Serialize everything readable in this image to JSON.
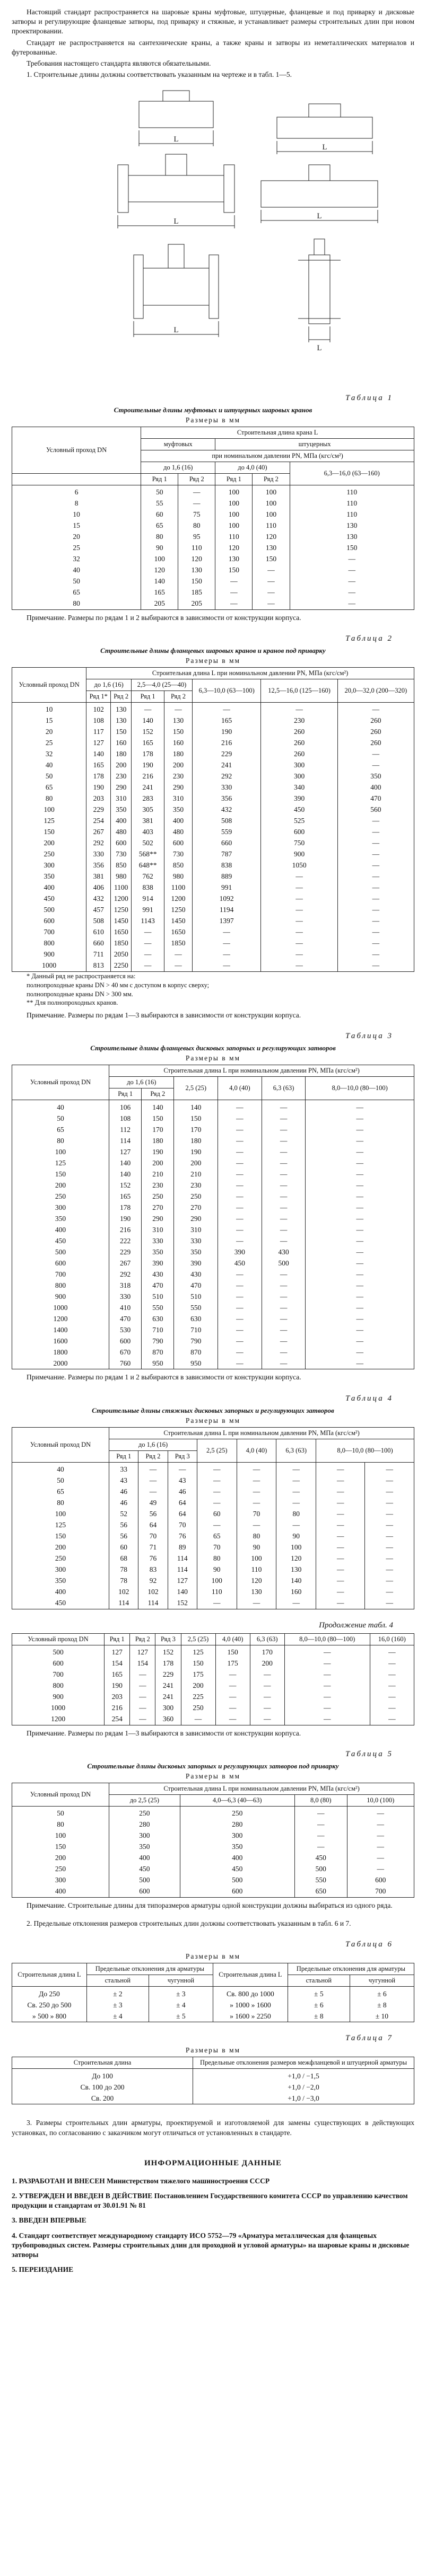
{
  "intro": {
    "p1": "Настоящий стандарт распространяется на шаровые краны муфтовые, штуцерные, фланцевые и под приварку и дисковые затворы и регулирующие фланцевые затворы, под приварку и стяжные, и устанавливает размеры строительных длин при новом проектировании.",
    "p2": "Стандарт не распространяется на сантехнические краны, а также краны и затворы из неметаллических материалов и футерованные.",
    "p3": "Требования настоящего стандарта являются обязательными.",
    "p4": "1. Строительные длины должны соответствовать указанным на чертеже и в табл. 1—5."
  },
  "figure": {
    "labels": [
      "L",
      "L",
      "L",
      "L",
      "L",
      "L"
    ]
  },
  "table1": {
    "caption": "Таблица 1",
    "title": "Строительные длины муфтовых и штуцерных шаровых кранов",
    "units": "Размеры в мм",
    "head": [
      "Условный проход DN",
      "Строительная длина крана L",
      "муфтовых",
      "штуцерных",
      "при номинальном давлении PN, МПа (кгс/см²)",
      "до 1,6 (16)",
      "до 4,0 (40)",
      "6,3—16,0 (63—160)",
      "Ряд 1",
      "Ряд 2",
      "Ряд 1",
      "Ряд 2"
    ],
    "rows": [
      [
        "6",
        "50",
        "—",
        "100",
        "100",
        "110"
      ],
      [
        "8",
        "55",
        "—",
        "100",
        "100",
        "110"
      ],
      [
        "10",
        "60",
        "75",
        "100",
        "100",
        "110"
      ],
      [
        "15",
        "65",
        "80",
        "100",
        "110",
        "130"
      ],
      [
        "20",
        "80",
        "95",
        "110",
        "120",
        "130"
      ],
      [
        "25",
        "90",
        "110",
        "120",
        "130",
        "150"
      ],
      [
        "32",
        "100",
        "120",
        "130",
        "150",
        "—"
      ],
      [
        "40",
        "120",
        "130",
        "150",
        "—",
        "—"
      ],
      [
        "50",
        "140",
        "150",
        "—",
        "—",
        "—"
      ],
      [
        "65",
        "165",
        "185",
        "—",
        "—",
        "—"
      ],
      [
        "80",
        "205",
        "205",
        "—",
        "—",
        "—"
      ]
    ],
    "note": "Примечание. Размеры по рядам 1 и 2 выбираются в зависимости от конструкции корпуса."
  },
  "table2": {
    "caption": "Таблица 2",
    "title": "Строительные длины фланцевых шаровых кранов и кранов под приварку",
    "units": "Размеры в мм",
    "head": [
      "Условный проход DN",
      "Строительная длина L при номинальном давлении PN, МПа (кгс/см²)",
      "до 1,6 (16)",
      "2,5—4,0 (25—40)",
      "6,3—10,0 (63—100)",
      "12,5—16,0 (125—160)",
      "20,0—32,0 (200—320)",
      "Ряд 1*",
      "Ряд 2",
      "Ряд 1",
      "Ряд 2"
    ],
    "rows": [
      [
        "10",
        "102",
        "130",
        "—",
        "—",
        "—",
        "—",
        "—"
      ],
      [
        "15",
        "108",
        "130",
        "140",
        "130",
        "165",
        "230",
        "260"
      ],
      [
        "20",
        "117",
        "150",
        "152",
        "150",
        "190",
        "260",
        "260"
      ],
      [
        "25",
        "127",
        "160",
        "165",
        "160",
        "216",
        "260",
        "260"
      ],
      [
        "32",
        "140",
        "180",
        "178",
        "180",
        "229",
        "260",
        "—"
      ],
      [
        "40",
        "165",
        "200",
        "190",
        "200",
        "241",
        "300",
        "—"
      ],
      [
        "50",
        "178",
        "230",
        "216",
        "230",
        "292",
        "300",
        "350"
      ],
      [
        "65",
        "190",
        "290",
        "241",
        "290",
        "330",
        "340",
        "400"
      ],
      [
        "80",
        "203",
        "310",
        "283",
        "310",
        "356",
        "390",
        "470"
      ],
      [
        "100",
        "229",
        "350",
        "305",
        "350",
        "432",
        "450",
        "560"
      ],
      [
        "125",
        "254",
        "400",
        "381",
        "400",
        "508",
        "525",
        "—"
      ],
      [
        "150",
        "267",
        "480",
        "403",
        "480",
        "559",
        "600",
        "—"
      ],
      [
        "200",
        "292",
        "600",
        "502",
        "600",
        "660",
        "750",
        "—"
      ],
      [
        "250",
        "330",
        "730",
        "568**",
        "730",
        "787",
        "900",
        "—"
      ],
      [
        "300",
        "356",
        "850",
        "648**",
        "850",
        "838",
        "1050",
        "—"
      ],
      [
        "350",
        "381",
        "980",
        "762",
        "980",
        "889",
        "—",
        "—"
      ],
      [
        "400",
        "406",
        "1100",
        "838",
        "1100",
        "991",
        "—",
        "—"
      ],
      [
        "450",
        "432",
        "1200",
        "914",
        "1200",
        "1092",
        "—",
        "—"
      ],
      [
        "500",
        "457",
        "1250",
        "991",
        "1250",
        "1194",
        "—",
        "—"
      ],
      [
        "600",
        "508",
        "1450",
        "1143",
        "1450",
        "1397",
        "—",
        "—"
      ],
      [
        "700",
        "610",
        "1650",
        "—",
        "1650",
        "—",
        "—",
        "—"
      ],
      [
        "800",
        "660",
        "1850",
        "—",
        "1850",
        "—",
        "—",
        "—"
      ],
      [
        "900",
        "711",
        "2050",
        "—",
        "—",
        "—",
        "—",
        "—"
      ],
      [
        "1000",
        "813",
        "2250",
        "—",
        "—",
        "—",
        "—",
        "—"
      ]
    ],
    "footnotes": [
      "* Данный ряд не распространяется на:",
      "полнопроходные краны DN > 40 мм с доступом в корпус сверху;",
      "полнопроходные краны DN > 300 мм.",
      "** Для полнопроходных кранов."
    ],
    "note": "Примечание. Размеры по рядам 1—3 выбираются в зависимости от конструкции корпуса."
  },
  "table3": {
    "caption": "Таблица 3",
    "title": "Строительные длины фланцевых дисковых запорных и регулирующих затворов",
    "units": "Размеры в мм",
    "head": [
      "Условный проход DN",
      "Строительная длина L при номинальном давлении PN, МПа (кгс/см²)",
      "до 1,6 (16)",
      "2,5 (25)",
      "4,0 (40)",
      "6,3 (63)",
      "8,0—10,0 (80—100)",
      "Ряд 1",
      "Ряд 2"
    ],
    "rows": [
      [
        "40",
        "106",
        "140",
        "140",
        "—",
        "—",
        "—"
      ],
      [
        "50",
        "108",
        "150",
        "150",
        "—",
        "—",
        "—"
      ],
      [
        "65",
        "112",
        "170",
        "170",
        "—",
        "—",
        "—"
      ],
      [
        "80",
        "114",
        "180",
        "180",
        "—",
        "—",
        "—"
      ],
      [
        "100",
        "127",
        "190",
        "190",
        "—",
        "—",
        "—"
      ],
      [
        "125",
        "140",
        "200",
        "200",
        "—",
        "—",
        "—"
      ],
      [
        "150",
        "140",
        "210",
        "210",
        "—",
        "—",
        "—"
      ],
      [
        "200",
        "152",
        "230",
        "230",
        "—",
        "—",
        "—"
      ],
      [
        "250",
        "165",
        "250",
        "250",
        "—",
        "—",
        "—"
      ],
      [
        "300",
        "178",
        "270",
        "270",
        "—",
        "—",
        "—"
      ],
      [
        "350",
        "190",
        "290",
        "290",
        "—",
        "—",
        "—"
      ],
      [
        "400",
        "216",
        "310",
        "310",
        "—",
        "—",
        "—"
      ],
      [
        "450",
        "222",
        "330",
        "330",
        "—",
        "—",
        "—"
      ],
      [
        "500",
        "229",
        "350",
        "350",
        "390",
        "430",
        "—"
      ],
      [
        "600",
        "267",
        "390",
        "390",
        "450",
        "500",
        "—"
      ],
      [
        "700",
        "292",
        "430",
        "430",
        "—",
        "—",
        "—"
      ],
      [
        "800",
        "318",
        "470",
        "470",
        "—",
        "—",
        "—"
      ],
      [
        "900",
        "330",
        "510",
        "510",
        "—",
        "—",
        "—"
      ],
      [
        "1000",
        "410",
        "550",
        "550",
        "—",
        "—",
        "—"
      ],
      [
        "1200",
        "470",
        "630",
        "630",
        "—",
        "—",
        "—"
      ],
      [
        "1400",
        "530",
        "710",
        "710",
        "—",
        "—",
        "—"
      ],
      [
        "1600",
        "600",
        "790",
        "790",
        "—",
        "—",
        "—"
      ],
      [
        "1800",
        "670",
        "870",
        "870",
        "—",
        "—",
        "—"
      ],
      [
        "2000",
        "760",
        "950",
        "950",
        "—",
        "—",
        "—"
      ]
    ],
    "note": "Примечание. Размеры по рядам 1 и 2 выбираются в зависимости от конструкции корпуса."
  },
  "table4": {
    "caption": "Таблица 4",
    "title": "Строительные длины стяжных дисковых запорных и регулирующих затворов",
    "units": "Размеры в мм",
    "head": [
      "Условный проход DN",
      "Строительная длина L при номинальном давлении PN, МПа (кгс/см²)",
      "до 1,6 (16)",
      "2,5 (25)",
      "4,0 (40)",
      "6,3 (63)",
      "8,0—10,0 (80—100)",
      "16,0 (160)",
      "Ряд 1",
      "Ряд 2",
      "Ряд 3"
    ],
    "rows": [
      [
        "40",
        "33",
        "—",
        "—",
        "—",
        "—",
        "—",
        "—",
        "—"
      ],
      [
        "50",
        "43",
        "—",
        "43",
        "—",
        "—",
        "—",
        "—",
        "—"
      ],
      [
        "65",
        "46",
        "—",
        "46",
        "—",
        "—",
        "—",
        "—",
        "—"
      ],
      [
        "80",
        "46",
        "49",
        "64",
        "—",
        "—",
        "—",
        "—",
        "—"
      ],
      [
        "100",
        "52",
        "56",
        "64",
        "60",
        "70",
        "80",
        "—",
        "—"
      ],
      [
        "125",
        "56",
        "64",
        "70",
        "—",
        "—",
        "—",
        "—",
        "—"
      ],
      [
        "150",
        "56",
        "70",
        "76",
        "65",
        "80",
        "90",
        "—",
        "—"
      ],
      [
        "200",
        "60",
        "71",
        "89",
        "70",
        "90",
        "100",
        "—",
        "—"
      ],
      [
        "250",
        "68",
        "76",
        "114",
        "80",
        "100",
        "120",
        "—",
        "—"
      ],
      [
        "300",
        "78",
        "83",
        "114",
        "90",
        "110",
        "130",
        "—",
        "—"
      ],
      [
        "350",
        "78",
        "92",
        "127",
        "100",
        "120",
        "140",
        "—",
        "—"
      ],
      [
        "400",
        "102",
        "102",
        "140",
        "110",
        "130",
        "160",
        "—",
        "—"
      ],
      [
        "450",
        "114",
        "114",
        "152",
        "—",
        "—",
        "—",
        "—",
        "—"
      ]
    ],
    "continuation": "Продолжение табл. 4",
    "rows2": [
      [
        "500",
        "127",
        "127",
        "152",
        "125",
        "150",
        "170",
        "—",
        "—"
      ],
      [
        "600",
        "154",
        "154",
        "178",
        "150",
        "175",
        "200",
        "—",
        "—"
      ],
      [
        "700",
        "165",
        "—",
        "229",
        "175",
        "—",
        "—",
        "—",
        "—"
      ],
      [
        "800",
        "190",
        "—",
        "241",
        "200",
        "—",
        "—",
        "—",
        "—"
      ],
      [
        "900",
        "203",
        "—",
        "241",
        "225",
        "—",
        "—",
        "—",
        "—"
      ],
      [
        "1000",
        "216",
        "—",
        "300",
        "250",
        "—",
        "—",
        "—",
        "—"
      ],
      [
        "1200",
        "254",
        "—",
        "360",
        "—",
        "—",
        "—",
        "—",
        "—"
      ]
    ],
    "note": "Примечание. Размеры по рядам 1—3 выбираются в зависимости от конструкции корпуса."
  },
  "table5": {
    "caption": "Таблица 5",
    "title": "Строительные длины дисковых запорных и регулирующих затворов под приварку",
    "units": "Размеры в мм",
    "head": [
      "Условный проход DN",
      "Строительная длина L при номинальном давлении PN, МПа (кгс/см²)",
      "до 2,5 (25)",
      "4,0—6,3 (40—63)",
      "8,0 (80)",
      "10,0 (100)"
    ],
    "rows": [
      [
        "50",
        "250",
        "250",
        "—",
        "—"
      ],
      [
        "80",
        "280",
        "280",
        "—",
        "—"
      ],
      [
        "100",
        "300",
        "300",
        "—",
        "—"
      ],
      [
        "150",
        "350",
        "350",
        "—",
        "—"
      ],
      [
        "200",
        "400",
        "400",
        "450",
        "—"
      ],
      [
        "250",
        "450",
        "450",
        "500",
        "—"
      ],
      [
        "300",
        "500",
        "500",
        "550",
        "600"
      ],
      [
        "400",
        "600",
        "600",
        "650",
        "700"
      ]
    ],
    "note": "Примечание. Строительные длины для типоразмеров арматуры одной конструкции должны выбираться из одного ряда."
  },
  "para2": "2. Предельные отклонения размеров строительных длин должны соответствовать указанным в табл. 6 и 7.",
  "table6": {
    "caption": "Таблица 6",
    "units": "Размеры в мм",
    "head": [
      "Строительная длина L",
      "Предельные отклонения для арматуры",
      "стальной",
      "чугунной",
      "Строительная длина L",
      "Предельные отклонения для арматуры",
      "стальной",
      "чугунной"
    ],
    "rows": [
      [
        "До 250",
        "± 2",
        "± 3",
        "Св. 800 до 1000",
        "± 5",
        "± 6"
      ],
      [
        "Св. 250 до 500",
        "± 3",
        "± 4",
        "» 1000 » 1600",
        "± 6",
        "± 8"
      ],
      [
        "» 500 » 800",
        "± 4",
        "± 5",
        "» 1600 » 2250",
        "± 8",
        "± 10"
      ]
    ]
  },
  "table7": {
    "caption": "Таблица 7",
    "units": "Размеры в мм",
    "head": [
      "Строительная длина",
      "Предельные отклонения размеров межфланцевой и штуцерной арматуры"
    ],
    "rows": [
      [
        "До 100",
        "+1,0 / −1,5"
      ],
      [
        "Св. 100 до 200",
        "+1,0 / −2,0"
      ],
      [
        "Св. 200",
        "+1,0 / −3,0"
      ]
    ]
  },
  "para3": "3. Размеры строительных длин арматуры, проектируемой и изготовляемой для замены существующих в действующих установках, по согласованию с заказчиком могут отличаться от установленных в стандарте.",
  "info": {
    "title": "ИНФОРМАЦИОННЫЕ ДАННЫЕ",
    "items": [
      "1. РАЗРАБОТАН И ВНЕСЕН Министерством тяжелого машиностроения СССР",
      "2. УТВЕРЖДЕН И ВВЕДЕН В ДЕЙСТВИЕ Постановлением Государственного комитета СССР по управлению качеством продукции и стандартам от 30.01.91 № 81",
      "3. ВВЕДЕН ВПЕРВЫЕ",
      "4. Стандарт соответствует международному стандарту ИСО 5752—79 «Арматура металлическая для фланцевых трубопроводных систем. Размеры строительных длин для проходной и угловой арматуры» на шаровые краны и дисковые затворы",
      "5. ПЕРЕИЗДАНИЕ"
    ]
  }
}
